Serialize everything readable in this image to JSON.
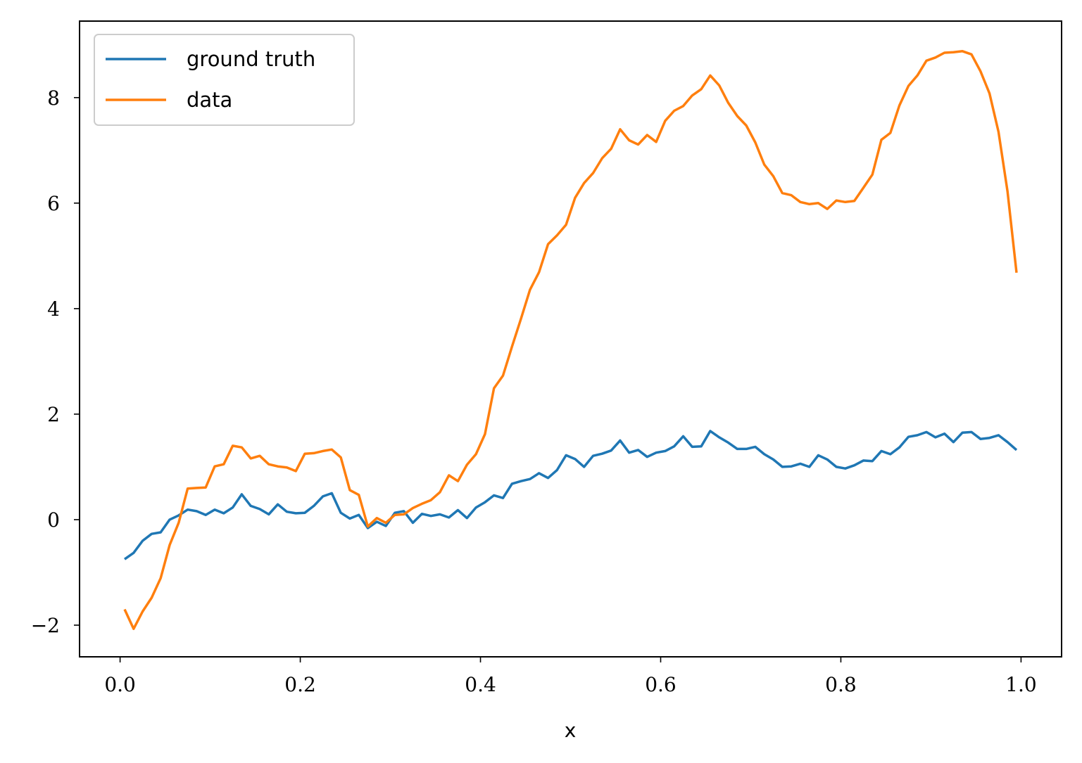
{
  "chart_data": {
    "type": "line",
    "title": "",
    "xlabel": "x",
    "ylabel": "",
    "xlim": [
      -0.045,
      1.045
    ],
    "ylim": [
      -2.6,
      9.45
    ],
    "xticks": [
      0.0,
      0.2,
      0.4,
      0.6,
      0.8,
      1.0
    ],
    "xtick_labels": [
      "0.0",
      "0.2",
      "0.4",
      "0.6",
      "0.8",
      "1.0"
    ],
    "yticks": [
      -2,
      0,
      2,
      4,
      6,
      8
    ],
    "ytick_labels": [
      "−2",
      "0",
      "2",
      "4",
      "6",
      "8"
    ],
    "grid": false,
    "legend_position": "top-left",
    "x": [
      0.005,
      0.015,
      0.025,
      0.035,
      0.045,
      0.055,
      0.065,
      0.075,
      0.085,
      0.095,
      0.105,
      0.115,
      0.125,
      0.135,
      0.145,
      0.155,
      0.165,
      0.175,
      0.185,
      0.195,
      0.205,
      0.215,
      0.225,
      0.235,
      0.245,
      0.255,
      0.265,
      0.275,
      0.285,
      0.295,
      0.305,
      0.315,
      0.325,
      0.335,
      0.345,
      0.355,
      0.365,
      0.375,
      0.385,
      0.395,
      0.405,
      0.415,
      0.425,
      0.435,
      0.445,
      0.455,
      0.465,
      0.475,
      0.485,
      0.495,
      0.505,
      0.515,
      0.525,
      0.535,
      0.545,
      0.555,
      0.565,
      0.575,
      0.585,
      0.595,
      0.605,
      0.615,
      0.625,
      0.635,
      0.645,
      0.655,
      0.665,
      0.675,
      0.685,
      0.695,
      0.705,
      0.715,
      0.725,
      0.735,
      0.745,
      0.755,
      0.765,
      0.775,
      0.785,
      0.795,
      0.805,
      0.815,
      0.825,
      0.835,
      0.845,
      0.855,
      0.865,
      0.875,
      0.885,
      0.895,
      0.905,
      0.915,
      0.925,
      0.935,
      0.945,
      0.955,
      0.965,
      0.975,
      0.985,
      0.995
    ],
    "series": [
      {
        "name": "ground truth",
        "color": "#1f77b4",
        "values": [
          -0.75,
          -0.63,
          -0.4,
          -0.27,
          -0.24,
          0.0,
          0.08,
          0.19,
          0.16,
          0.09,
          0.19,
          0.12,
          0.23,
          0.48,
          0.26,
          0.2,
          0.1,
          0.29,
          0.15,
          0.12,
          0.13,
          0.26,
          0.44,
          0.5,
          0.13,
          0.02,
          0.09,
          -0.16,
          -0.04,
          -0.12,
          0.13,
          0.16,
          -0.06,
          0.11,
          0.07,
          0.1,
          0.04,
          0.18,
          0.03,
          0.23,
          0.33,
          0.46,
          0.41,
          0.68,
          0.73,
          0.77,
          0.88,
          0.79,
          0.94,
          1.22,
          1.15,
          1.0,
          1.21,
          1.25,
          1.31,
          1.5,
          1.27,
          1.32,
          1.19,
          1.27,
          1.3,
          1.39,
          1.58,
          1.38,
          1.39,
          1.68,
          1.56,
          1.46,
          1.34,
          1.34,
          1.38,
          1.24,
          1.14,
          1.0,
          1.01,
          1.06,
          1.0,
          1.22,
          1.14,
          1.0,
          0.97,
          1.03,
          1.12,
          1.11,
          1.3,
          1.24,
          1.37,
          1.57,
          1.6,
          1.66,
          1.56,
          1.63,
          1.47,
          1.65,
          1.66,
          1.53,
          1.55,
          1.6,
          1.47,
          1.32
        ]
      },
      {
        "name": "data",
        "color": "#ff7f0e",
        "values": [
          -1.7,
          -2.07,
          -1.74,
          -1.48,
          -1.11,
          -0.48,
          -0.06,
          0.59,
          0.6,
          0.61,
          1.01,
          1.05,
          1.4,
          1.37,
          1.16,
          1.21,
          1.05,
          1.01,
          0.99,
          0.92,
          1.25,
          1.26,
          1.3,
          1.33,
          1.18,
          0.56,
          0.47,
          -0.13,
          0.03,
          -0.06,
          0.09,
          0.1,
          0.22,
          0.3,
          0.37,
          0.52,
          0.84,
          0.73,
          1.04,
          1.24,
          1.62,
          2.49,
          2.73,
          3.28,
          3.81,
          4.36,
          4.69,
          5.22,
          5.39,
          5.59,
          6.1,
          6.38,
          6.57,
          6.85,
          7.03,
          7.4,
          7.19,
          7.11,
          7.29,
          7.16,
          7.56,
          7.75,
          7.84,
          8.04,
          8.16,
          8.42,
          8.23,
          7.9,
          7.65,
          7.47,
          7.15,
          6.73,
          6.51,
          6.19,
          6.15,
          6.02,
          5.98,
          6.0,
          5.89,
          6.05,
          6.02,
          6.04,
          6.29,
          6.54,
          7.2,
          7.33,
          7.85,
          8.22,
          8.42,
          8.7,
          8.76,
          8.85,
          8.86,
          8.88,
          8.82,
          8.5,
          8.08,
          7.35,
          6.22,
          4.68
        ]
      }
    ]
  }
}
